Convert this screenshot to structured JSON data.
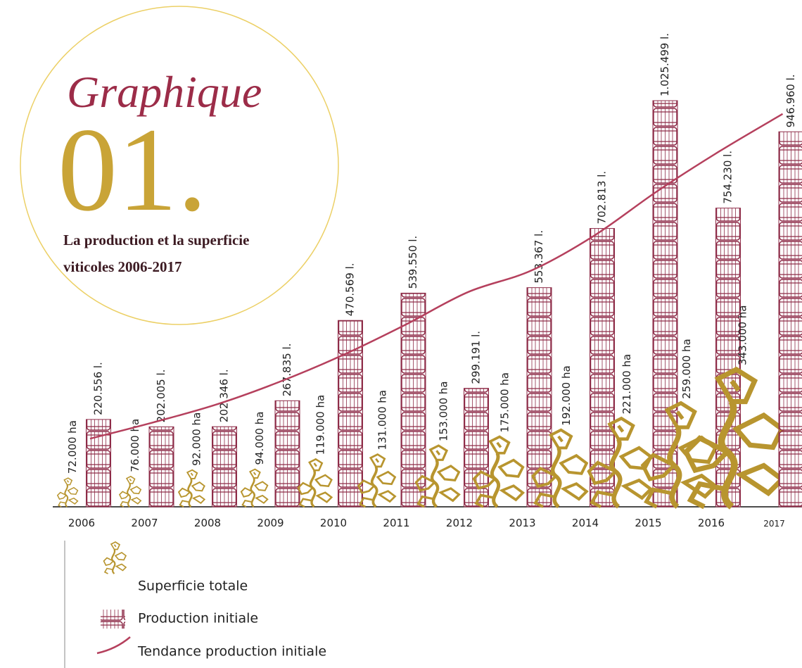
{
  "chart_data": {
    "type": "pictogram",
    "kicker": "Graphique",
    "title_number": "01.",
    "title": "La production et la superficie viticoles 2006-2017",
    "categories": [
      "2006",
      "2007",
      "2008",
      "2009",
      "2010",
      "2011",
      "2012",
      "2013",
      "2014",
      "2015",
      "2016",
      "2017"
    ],
    "series": [
      {
        "name": "Superficie totale",
        "color": "#b8952f",
        "values": [
          72000,
          76000,
          92000,
          94000,
          119000,
          131000,
          153000,
          175000,
          192000,
          221000,
          259000,
          343000
        ],
        "value_labels": [
          "72.000 ha",
          "76.000 ha",
          "92.000 ha",
          "94.000 ha",
          "119.000 ha",
          "131.000 ha",
          "153.000 ha",
          "175.000 ha",
          "192.000 ha",
          "221.000 ha",
          "259.000 ha",
          "343.000 ha"
        ]
      },
      {
        "name": "Production initiale",
        "color": "#8e2c48",
        "values": [
          220556,
          202005,
          202346,
          267835,
          470569,
          539550,
          299191,
          553367,
          702813,
          1025499,
          754230,
          946960
        ],
        "value_labels": [
          "220.556 l.",
          "202.005 l.",
          "202.346 l.",
          "267.835 l.",
          "470.569 l.",
          "539.550 l.",
          "299.191 l.",
          "553.367 l.",
          "702.813 l.",
          "1.025.499 l.",
          "754.230 l.",
          "946.960 l."
        ]
      },
      {
        "name": "Tendance production initiale",
        "color": "#b5405d",
        "values": [
          172000,
          213000,
          258000,
          315000,
          382000,
          459000,
          542000,
          596000,
          684000,
          796000,
          898000,
          992000
        ]
      }
    ]
  }
}
